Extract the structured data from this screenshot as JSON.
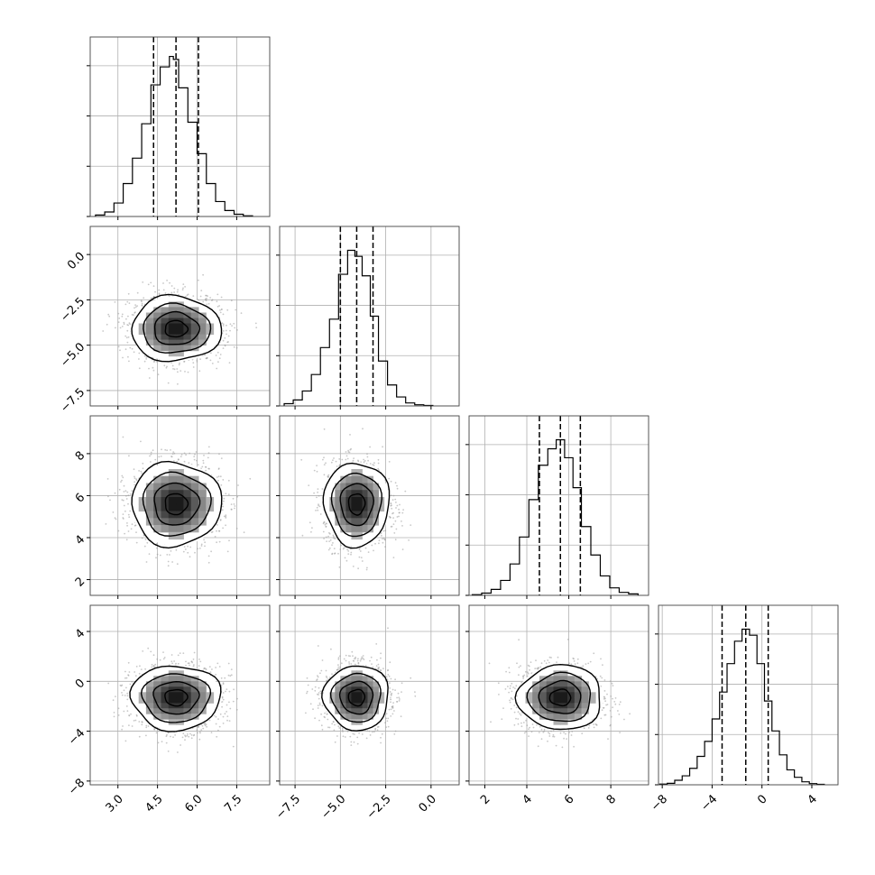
{
  "chart_data": {
    "type": "corner",
    "description_of_parameters_count": 4,
    "title": "",
    "axis_labels": [
      "",
      "",
      "",
      ""
    ],
    "ranges": [
      [
        1.95,
        8.75
      ],
      [
        -8.35,
        1.55
      ],
      [
        1.25,
        9.8
      ],
      [
        -8.3,
        6.1
      ]
    ],
    "x_ticks": [
      [
        3.0,
        4.5,
        6.0,
        7.5
      ],
      [
        -7.5,
        -5.0,
        -2.5,
        0.0
      ],
      [
        2,
        4,
        6,
        8
      ],
      [
        -8,
        -4,
        0,
        4
      ]
    ],
    "x_tick_labels": [
      [
        "3.0",
        "4.5",
        "6.0",
        "7.5"
      ],
      [
        "−7.5",
        "−5.0",
        "−2.5",
        "0.0"
      ],
      [
        "2",
        "4",
        "6",
        "8"
      ],
      [
        "−8",
        "−4",
        "0",
        "4"
      ]
    ],
    "y_ticks": [
      [],
      [
        0.0,
        -2.5,
        -5.0,
        -7.5
      ],
      [
        8,
        6,
        4,
        2
      ],
      [
        4,
        0,
        -4,
        -8
      ]
    ],
    "y_tick_labels": [
      [],
      [
        "0.0",
        "−2.5",
        "−5.0",
        "−7.5"
      ],
      [
        "8",
        "6",
        "4",
        "2"
      ],
      [
        "4",
        "0",
        "−4",
        "−8"
      ]
    ],
    "quantiles": [
      [
        4.35,
        5.2,
        6.05
      ],
      [
        -5.0,
        -4.1,
        -3.2
      ],
      [
        4.6,
        5.6,
        6.55
      ],
      [
        -3.2,
        -1.3,
        0.5
      ]
    ],
    "diag_ymax": [
      1.2,
      1.2,
      1.2,
      1.2
    ],
    "diag_ytick_fracs": [
      0.0,
      0.28,
      0.56,
      0.84
    ],
    "histograms": [
      {
        "edges": [
          2.15,
          2.5,
          2.85,
          3.2,
          3.55,
          3.9,
          4.25,
          4.6,
          4.95,
          5.1,
          5.3,
          5.65,
          6.0,
          6.35,
          6.7,
          7.05,
          7.4,
          7.75,
          8.1
        ],
        "counts": [
          0.01,
          0.03,
          0.09,
          0.22,
          0.39,
          0.62,
          0.88,
          1.0,
          1.07,
          1.05,
          0.86,
          0.63,
          0.42,
          0.22,
          0.1,
          0.04,
          0.015,
          0.005
        ]
      },
      {
        "edges": [
          -8.1,
          -7.6,
          -7.1,
          -6.6,
          -6.1,
          -5.6,
          -5.1,
          -4.6,
          -4.2,
          -3.8,
          -3.35,
          -2.9,
          -2.4,
          -1.9,
          -1.4,
          -0.9,
          -0.4,
          0.1
        ],
        "counts": [
          0.015,
          0.04,
          0.1,
          0.21,
          0.39,
          0.58,
          0.88,
          1.04,
          1.0,
          0.87,
          0.6,
          0.3,
          0.14,
          0.06,
          0.02,
          0.008,
          0.003
        ]
      },
      {
        "edges": [
          1.4,
          1.85,
          2.3,
          2.75,
          3.2,
          3.65,
          4.1,
          4.55,
          5.0,
          5.4,
          5.8,
          6.2,
          6.6,
          7.05,
          7.5,
          7.95,
          8.4,
          8.85,
          9.3
        ],
        "counts": [
          0.005,
          0.015,
          0.04,
          0.1,
          0.21,
          0.39,
          0.64,
          0.87,
          0.98,
          1.04,
          0.92,
          0.72,
          0.46,
          0.27,
          0.13,
          0.05,
          0.02,
          0.01
        ]
      },
      {
        "edges": [
          -8.2,
          -7.6,
          -7.0,
          -6.4,
          -5.8,
          -5.2,
          -4.6,
          -4.0,
          -3.4,
          -2.8,
          -2.2,
          -1.6,
          -1.0,
          -0.4,
          0.2,
          0.8,
          1.4,
          2.0,
          2.6,
          3.2,
          3.8,
          4.4,
          5.0
        ],
        "counts": [
          0.005,
          0.01,
          0.03,
          0.06,
          0.11,
          0.19,
          0.29,
          0.44,
          0.62,
          0.81,
          0.96,
          1.04,
          1.0,
          0.81,
          0.56,
          0.36,
          0.2,
          0.1,
          0.05,
          0.02,
          0.008,
          0.003
        ]
      }
    ],
    "centers": [
      5.2,
      -4.1,
      5.6,
      -1.3
    ],
    "spreads": [
      0.85,
      0.9,
      1.0,
      1.3
    ],
    "contour_levels_sigma": [
      0.5,
      1.0,
      1.5,
      2.0
    ],
    "scatter_samples_per_panel": 1600,
    "grid": true,
    "colors": {
      "line": "#000000",
      "grid": "#b0b0b0",
      "scatter": "#9a9a9a",
      "density_dark": "#1a1a1a"
    }
  }
}
